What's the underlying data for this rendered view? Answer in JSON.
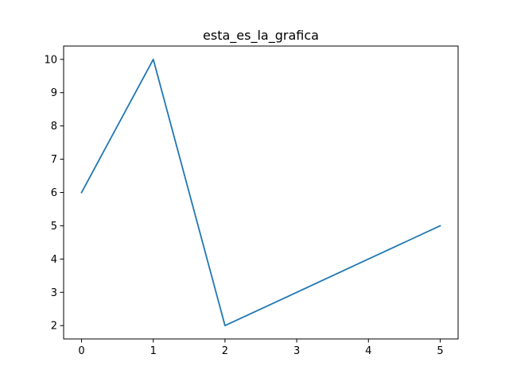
{
  "chart_data": {
    "type": "line",
    "title": "esta_es_la_grafica",
    "xlabel": "",
    "ylabel": "",
    "x": [
      0,
      1,
      2,
      3,
      4,
      5
    ],
    "series": [
      {
        "values": [
          6,
          10,
          2,
          3,
          4,
          5
        ],
        "color": "#1f77b4"
      }
    ],
    "xlim": [
      -0.25,
      5.25
    ],
    "ylim": [
      1.6,
      10.4
    ],
    "xticks": [
      0,
      1,
      2,
      3,
      4,
      5
    ],
    "yticks": [
      2,
      3,
      4,
      5,
      6,
      7,
      8,
      9,
      10
    ],
    "grid": false,
    "legend": "none"
  }
}
